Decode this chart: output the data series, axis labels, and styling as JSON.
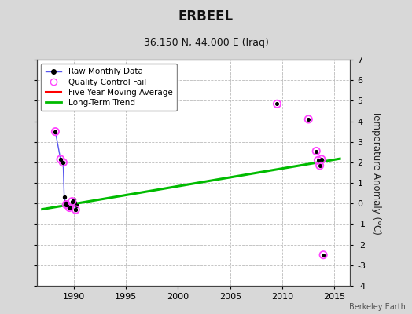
{
  "title": "ERBEEL",
  "subtitle": "36.150 N, 44.000 E (Iraq)",
  "watermark": "Berkeley Earth",
  "ylabel": "Temperature Anomaly (°C)",
  "xlim": [
    1986.5,
    2016.5
  ],
  "ylim": [
    -4,
    7
  ],
  "yticks": [
    -4,
    -3,
    -2,
    -1,
    0,
    1,
    2,
    3,
    4,
    5,
    6,
    7
  ],
  "xticks": [
    1990,
    1995,
    2000,
    2005,
    2010,
    2015
  ],
  "bg_color": "#d8d8d8",
  "plot_bg_color": "#ffffff",
  "raw_data_x": [
    1988.25,
    1988.75,
    1989.0,
    1989.1,
    1989.2,
    1989.3,
    1989.5,
    1989.6,
    1989.7,
    1989.85,
    1990.0,
    1990.1,
    1990.2,
    1990.3
  ],
  "raw_data_y": [
    3.5,
    2.15,
    2.0,
    0.3,
    0.1,
    -0.05,
    -0.1,
    -0.2,
    -0.15,
    0.1,
    0.2,
    0.05,
    -0.3,
    -0.1
  ],
  "qc_fail_x": [
    1988.25,
    1988.75,
    1989.0,
    1989.3,
    1989.6,
    1989.85,
    1990.2,
    2009.5,
    2012.5,
    2013.25,
    2013.42,
    2013.58,
    2013.75,
    2013.92
  ],
  "qc_fail_y": [
    3.5,
    2.15,
    2.0,
    -0.05,
    -0.2,
    0.1,
    -0.3,
    4.85,
    4.1,
    2.55,
    2.1,
    1.85,
    2.15,
    -2.5
  ],
  "trend_x": [
    1987.0,
    2015.5
  ],
  "trend_y": [
    -0.28,
    2.18
  ],
  "grid_color": "#bbbbbb",
  "raw_line_color": "#5555ee",
  "raw_dot_color": "#000000",
  "qc_color": "#ff44ff",
  "trend_color": "#00bb00",
  "five_year_color": "#ff0000",
  "legend_fontsize": 7.5,
  "tick_fontsize": 8,
  "title_fontsize": 12,
  "subtitle_fontsize": 9
}
